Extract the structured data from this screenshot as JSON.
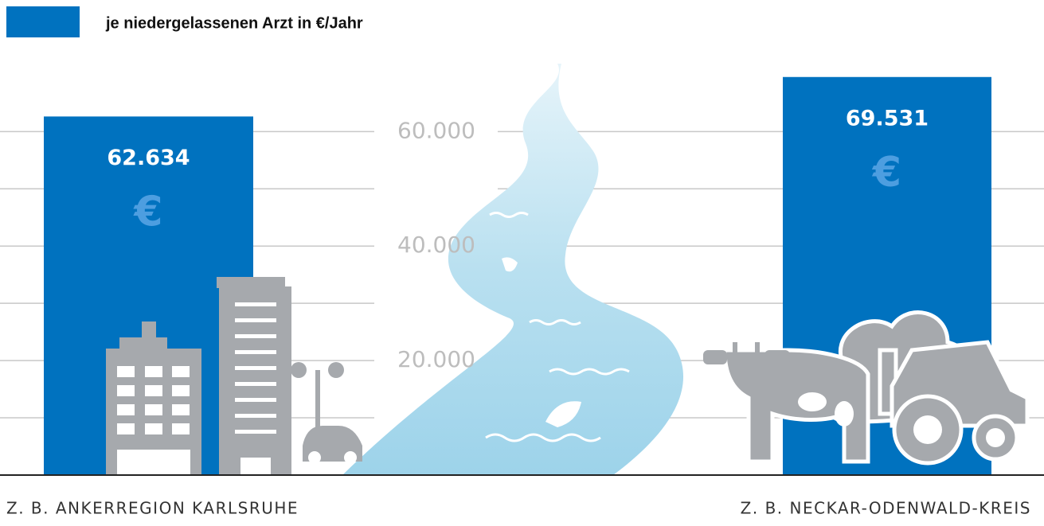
{
  "chart_data": {
    "type": "bar",
    "series": [
      {
        "name": "je niedergelassenen Arzt in €/Jahr",
        "color": "#0072bf",
        "values": [
          62634,
          69531
        ],
        "value_labels": [
          "62.634",
          "69.531"
        ]
      }
    ],
    "categories": [
      "Z. B. ANKERREGION KARLSRUHE",
      "Z. B. NECKAR-ODENWALD-KREIS"
    ],
    "bar_symbol": "€",
    "ylim": [
      0,
      72000
    ],
    "yticks": [
      {
        "value": 10000,
        "label": null
      },
      {
        "value": 20000,
        "label": "20.000"
      },
      {
        "value": 30000,
        "label": null
      },
      {
        "value": 40000,
        "label": "40.000"
      },
      {
        "value": 50000,
        "label": null
      },
      {
        "value": 60000,
        "label": "60.000"
      }
    ],
    "grid": true
  }
}
